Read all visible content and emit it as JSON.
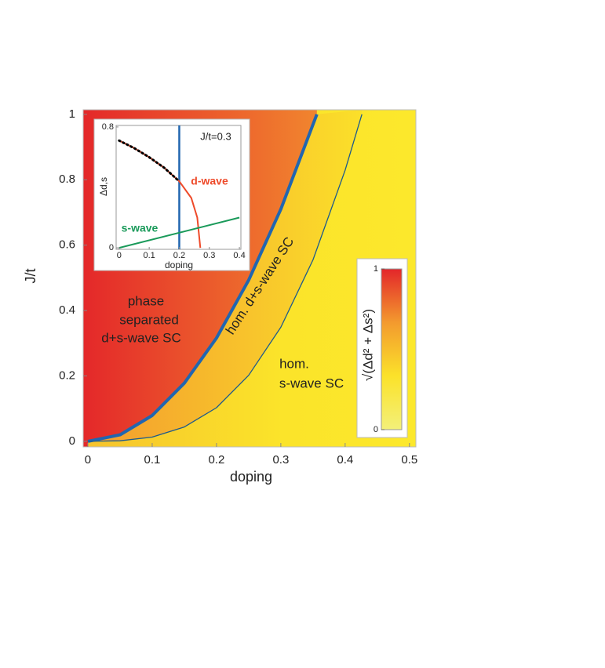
{
  "chart_data": [
    {
      "type": "line",
      "xlabel": "doping",
      "ylabel": "J/t",
      "xlim": [
        -0.0073,
        0.51
      ],
      "ylim": [
        -0.017,
        1.014
      ],
      "xticks": [
        0,
        0.1,
        0.2,
        0.3,
        0.4,
        0.5
      ],
      "yticks": [
        0,
        0.2,
        0.4,
        0.6,
        0.8,
        1
      ],
      "series": [
        {
          "color": "#2166b0",
          "linewidth": 4,
          "x": [
            0,
            0.05,
            0.1,
            0.15,
            0.2,
            0.25,
            0.3,
            0.356
          ],
          "values": [
            0,
            0.02,
            0.079,
            0.178,
            0.316,
            0.493,
            0.71,
            1.0
          ]
        },
        {
          "color": "#1d5a8c",
          "linewidth": 1.3,
          "x": [
            0,
            0.05,
            0.1,
            0.15,
            0.2,
            0.25,
            0.3,
            0.35,
            0.4,
            0.426
          ],
          "values": [
            0,
            0.0016,
            0.013,
            0.044,
            0.103,
            0.202,
            0.349,
            0.555,
            0.829,
            1.0
          ]
        }
      ],
      "annotations": [
        "phase",
        "separated",
        "d+s-wave SC",
        "hom. d+s-wave SC",
        "hom.",
        "s-wave SC"
      ],
      "colorbar": {
        "label": "√(Δd² + Δs²)",
        "lim": [
          0,
          1
        ],
        "ticks": [
          0,
          1
        ],
        "colors": [
          "#f3f07a",
          "#fbe22a",
          "#f39a2e",
          "#e3262a"
        ]
      }
    },
    {
      "type": "line",
      "xlabel": "doping",
      "ylabel": "Δd,s",
      "xlim": [
        -0.01,
        0.405
      ],
      "ylim": [
        -0.01,
        0.81
      ],
      "xticks": [
        0,
        0.1,
        0.2,
        0.3,
        0.4
      ],
      "yticks": [
        0,
        0.8
      ],
      "series": [
        {
          "name": "d-wave",
          "color": "#ee4a2a",
          "x": [
            0,
            0.05,
            0.1,
            0.15,
            0.2,
            0.24,
            0.26,
            0.27
          ],
          "values": [
            0.71,
            0.66,
            0.6,
            0.53,
            0.44,
            0.33,
            0.2,
            0
          ]
        },
        {
          "name": "s-wave",
          "color": "#1a9a5a",
          "x": [
            0,
            0.4
          ],
          "values": [
            0,
            0.2
          ]
        },
        {
          "color": "#000000",
          "style": "dotted",
          "x": [
            0,
            0.05,
            0.1,
            0.15,
            0.2
          ],
          "values": [
            0.71,
            0.66,
            0.6,
            0.53,
            0.44
          ]
        }
      ],
      "vlines": [
        {
          "x": 0.2,
          "color": "#2166b0"
        }
      ],
      "annotations": [
        "J/t=0.3"
      ]
    }
  ]
}
